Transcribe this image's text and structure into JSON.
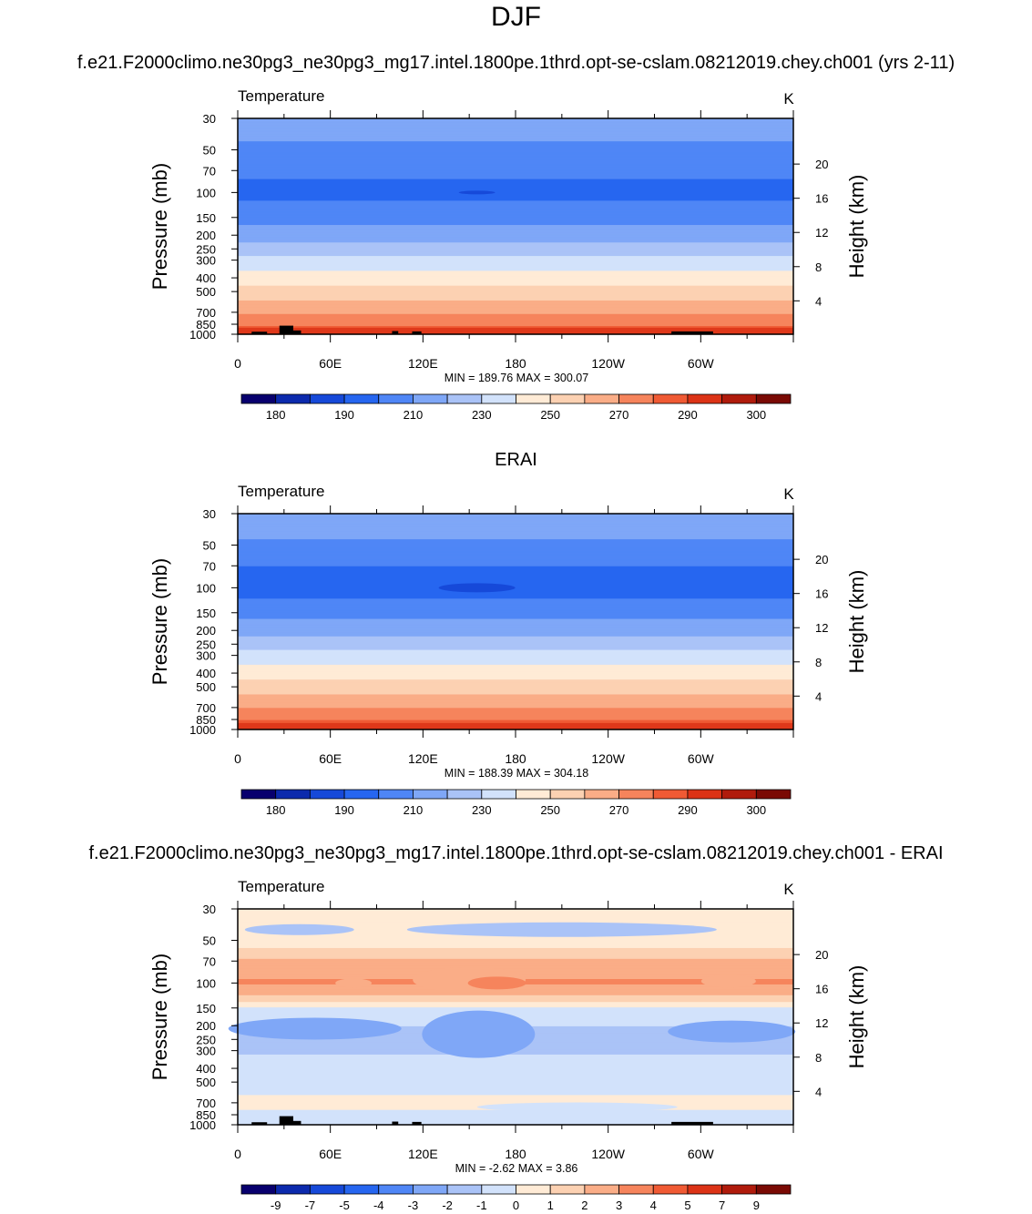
{
  "figure": {
    "season": "DJF",
    "case_title": "f.e21.F2000climo.ne30pg3_ne30pg3_mg17.intel.1800pe.1thrd.opt-se-cslam.08212019.chey.ch001 (yrs 2-11)",
    "obs_title": "ERAI",
    "diff_title": "f.e21.F2000climo.ne30pg3_ne30pg3_mg17.intel.1800pe.1thrd.opt-se-cslam.08212019.chey.ch001 - ERAI"
  },
  "colors": {
    "abs": [
      "#08006e",
      "#0c2aad",
      "#1649d9",
      "#2666f0",
      "#4f86f6",
      "#7fa7f7",
      "#aac3f7",
      "#d2e2fb",
      "#ffebd6",
      "#fcd1b2",
      "#faad87",
      "#f6845c",
      "#f05a34",
      "#dc3316",
      "#b01b0c",
      "#7a0a04"
    ],
    "diff": [
      "#08006e",
      "#0c2aad",
      "#1649d9",
      "#2666f0",
      "#4f86f6",
      "#7fa7f7",
      "#aac3f7",
      "#d2e2fb",
      "#ffebd6",
      "#fcd1b2",
      "#faad87",
      "#f6845c",
      "#f05a34",
      "#dc3316",
      "#b01b0c",
      "#7a0a04"
    ]
  },
  "chart_data": [
    {
      "type": "heatmap",
      "id": "model",
      "title": "DJF",
      "subtitle": "f.e21.F2000climo.ne30pg3_ne30pg3_mg17.intel.1800pe.1thrd.opt-se-cslam.08212019.chey.ch001 (yrs 2-11)",
      "field_label": "Temperature",
      "units": "K",
      "xlabel": "",
      "ylabel": "Pressure (mb)",
      "y2label": "Height (km)",
      "x_ticks": [
        "0",
        "60E",
        "120E",
        "180",
        "120W",
        "60W"
      ],
      "y_ticks": [
        30,
        50,
        70,
        100,
        150,
        200,
        250,
        300,
        400,
        500,
        700,
        850,
        1000
      ],
      "y2_ticks": [
        20,
        16,
        12,
        8,
        4
      ],
      "min_label": "MIN = 189.76",
      "max_label": "MAX = 300.07",
      "min": 189.76,
      "max": 300.07,
      "colorbar_levels": [
        175,
        180,
        185,
        190,
        200,
        210,
        220,
        230,
        240,
        250,
        260,
        270,
        280,
        290,
        295,
        300
      ],
      "colorbar_labels": [
        "180",
        "190",
        "210",
        "230",
        "250",
        "270",
        "290",
        "300"
      ],
      "profile": [
        {
          "p": 30,
          "T": 212
        },
        {
          "p": 40,
          "T": 212
        },
        {
          "p": 50,
          "T": 207
        },
        {
          "p": 60,
          "T": 205
        },
        {
          "p": 70,
          "T": 202
        },
        {
          "p": 100,
          "T": 197
        },
        {
          "p": 130,
          "T": 203
        },
        {
          "p": 150,
          "T": 207
        },
        {
          "p": 200,
          "T": 214
        },
        {
          "p": 250,
          "T": 225
        },
        {
          "p": 300,
          "T": 233
        },
        {
          "p": 400,
          "T": 245
        },
        {
          "p": 500,
          "T": 254
        },
        {
          "p": 600,
          "T": 262
        },
        {
          "p": 700,
          "T": 269
        },
        {
          "p": 850,
          "T": 278
        },
        {
          "p": 1000,
          "T": 288
        }
      ]
    },
    {
      "type": "heatmap",
      "id": "obs",
      "title": "ERAI",
      "field_label": "Temperature",
      "units": "K",
      "xlabel": "",
      "ylabel": "Pressure (mb)",
      "y2label": "Height (km)",
      "x_ticks": [
        "0",
        "60E",
        "120E",
        "180",
        "120W",
        "60W"
      ],
      "y_ticks": [
        30,
        50,
        70,
        100,
        150,
        200,
        250,
        300,
        400,
        500,
        700,
        850,
        1000
      ],
      "y2_ticks": [
        20,
        16,
        12,
        8,
        4
      ],
      "min_label": "MIN = 188.39",
      "max_label": "MAX = 304.18",
      "min": 188.39,
      "max": 304.18,
      "colorbar_levels": [
        175,
        180,
        185,
        190,
        200,
        210,
        220,
        230,
        240,
        250,
        260,
        270,
        280,
        290,
        295,
        300
      ],
      "colorbar_labels": [
        "180",
        "190",
        "210",
        "230",
        "250",
        "270",
        "290",
        "300"
      ],
      "profile": [
        {
          "p": 30,
          "T": 214
        },
        {
          "p": 40,
          "T": 213
        },
        {
          "p": 50,
          "T": 208
        },
        {
          "p": 60,
          "T": 205
        },
        {
          "p": 70,
          "T": 200
        },
        {
          "p": 100,
          "T": 196
        },
        {
          "p": 130,
          "T": 202
        },
        {
          "p": 150,
          "T": 207
        },
        {
          "p": 200,
          "T": 215
        },
        {
          "p": 250,
          "T": 226
        },
        {
          "p": 300,
          "T": 234
        },
        {
          "p": 400,
          "T": 246
        },
        {
          "p": 500,
          "T": 255
        },
        {
          "p": 600,
          "T": 263
        },
        {
          "p": 700,
          "T": 270
        },
        {
          "p": 850,
          "T": 279
        },
        {
          "p": 1000,
          "T": 289
        }
      ]
    },
    {
      "type": "heatmap",
      "id": "diff",
      "title": "f.e21.F2000climo.ne30pg3_ne30pg3_mg17.intel.1800pe.1thrd.opt-se-cslam.08212019.chey.ch001 - ERAI",
      "field_label": "Temperature",
      "units": "K",
      "xlabel": "",
      "ylabel": "Pressure (mb)",
      "y2label": "Height (km)",
      "x_ticks": [
        "0",
        "60E",
        "120E",
        "180",
        "120W",
        "60W"
      ],
      "y_ticks": [
        30,
        50,
        70,
        100,
        150,
        200,
        250,
        300,
        400,
        500,
        700,
        850,
        1000
      ],
      "y2_ticks": [
        20,
        16,
        12,
        8,
        4
      ],
      "min_label": "MIN =  -2.62",
      "max_label": "MAX =  3.86",
      "min": -2.62,
      "max": 3.86,
      "colorbar_levels": [
        -10,
        -9,
        -8,
        -7,
        -5,
        -4,
        -3,
        -2,
        -1,
        0,
        1,
        2,
        3,
        4,
        5,
        7
      ],
      "colorbar_labels": [
        "-9",
        "-7",
        "-5",
        "-4",
        "-3",
        "-2",
        "-1",
        "0",
        "1",
        "2",
        "3",
        "4",
        "5",
        "7",
        "9"
      ],
      "profile": [
        {
          "p": 30,
          "T": -0.6
        },
        {
          "p": 50,
          "T": -0.6
        },
        {
          "p": 60,
          "T": 0.3
        },
        {
          "p": 70,
          "T": 1.2
        },
        {
          "p": 100,
          "T": 2.2
        },
        {
          "p": 130,
          "T": 0.6
        },
        {
          "p": 150,
          "T": -1.2
        },
        {
          "p": 200,
          "T": -2.0
        },
        {
          "p": 300,
          "T": -2.1
        },
        {
          "p": 400,
          "T": -1.6
        },
        {
          "p": 500,
          "T": -1.5
        },
        {
          "p": 700,
          "T": -0.7
        },
        {
          "p": 850,
          "T": -1.2
        },
        {
          "p": 1000,
          "T": -1.2
        }
      ]
    }
  ]
}
